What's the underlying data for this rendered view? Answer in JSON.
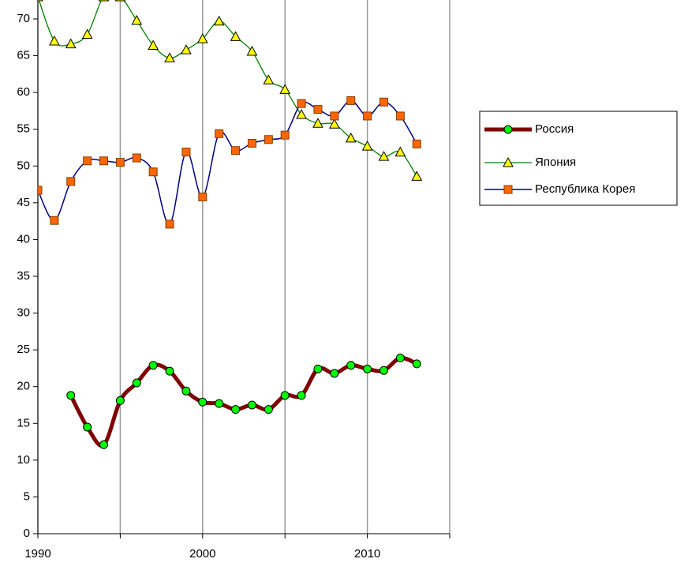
{
  "chart_data": {
    "type": "line",
    "x": [
      1990,
      1991,
      1992,
      1993,
      1994,
      1995,
      1996,
      1997,
      1998,
      1999,
      2000,
      2001,
      2002,
      2003,
      2004,
      2005,
      2006,
      2007,
      2008,
      2009,
      2010,
      2011,
      2012,
      2013
    ],
    "series": [
      {
        "name": "Россия",
        "color": "#800000",
        "marker": "circle",
        "marker_color": "#00ff00",
        "values": [
          null,
          null,
          18.8,
          14.5,
          12.1,
          18.1,
          20.5,
          22.9,
          22.1,
          19.4,
          17.9,
          17.7,
          16.9,
          17.5,
          16.9,
          18.8,
          18.8,
          22.4,
          21.8,
          22.9,
          22.4,
          22.2,
          23.9,
          23.1
        ]
      },
      {
        "name": "Япония",
        "color": "#008000",
        "marker": "triangle",
        "marker_color": "#ffff00",
        "values": [
          73,
          67.0,
          66.6,
          67.9,
          73,
          73,
          69.8,
          66.4,
          64.7,
          65.8,
          67.3,
          69.7,
          67.6,
          65.6,
          61.7,
          60.4,
          57.0,
          55.8,
          55.7,
          53.8,
          52.7,
          51.3,
          51.9,
          48.6
        ]
      },
      {
        "name": "Республика Корея",
        "color": "#000080",
        "marker": "square",
        "marker_color": "#ff6600",
        "values": [
          46.7,
          42.6,
          47.9,
          50.7,
          50.7,
          50.5,
          51.1,
          49.2,
          42.1,
          51.9,
          45.8,
          54.4,
          52.1,
          53.1,
          53.6,
          54.2,
          58.5,
          57.7,
          56.8,
          58.9,
          56.8,
          58.7,
          56.8,
          53.0
        ]
      }
    ],
    "xlim": [
      1990,
      2015
    ],
    "xticks": [
      1990,
      2000,
      2010
    ],
    "xminor_ticks": [
      1995,
      2005,
      2015
    ],
    "ylim": [
      0,
      70
    ],
    "yticks": [
      0,
      5,
      10,
      15,
      20,
      25,
      30,
      35,
      40,
      45,
      50,
      55,
      60,
      65,
      70
    ],
    "grid": "x",
    "smooth": true,
    "legend": "right"
  }
}
